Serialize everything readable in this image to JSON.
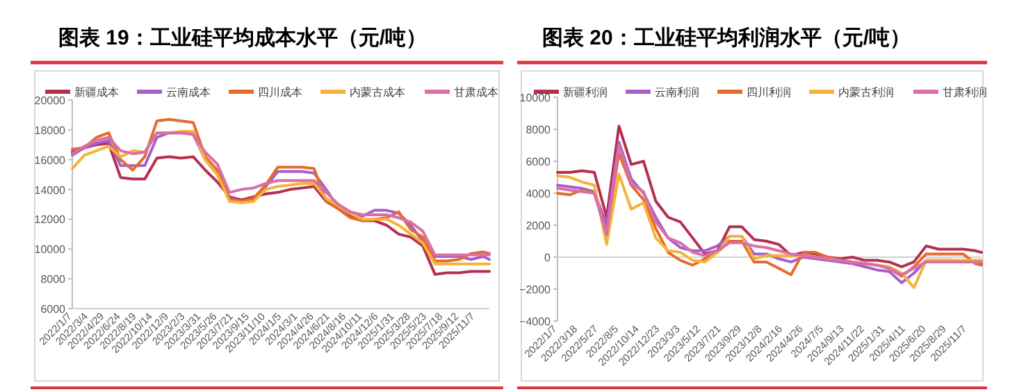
{
  "chart_data": [
    {
      "type": "line",
      "title": "图表 19：工业硅平均成本水平（元/吨）",
      "legend": "top",
      "x": [
        "2022-01-07",
        "2022-02-18",
        "2022-04-01",
        "2022-05-13",
        "2022-06-24",
        "2022-08-05",
        "2022-09-16",
        "2022-10-28",
        "2022-12-09",
        "2023-01-20",
        "2023-03-03",
        "2023-04-14",
        "2023-05-26",
        "2023-07-07",
        "2023-08-18",
        "2023-09-29",
        "2023-11-10",
        "2023-12-22",
        "2024-02-02",
        "2024-03-15",
        "2024-04-26",
        "2024-06-07",
        "2024-07-19",
        "2024-08-30",
        "2024-10-11",
        "2024-11-22",
        "2025-01-03",
        "2025-02-14",
        "2025-03-28",
        "2025-05-09",
        "2025-06-20",
        "2025-08-01",
        "2025-09-12",
        "2025-10-24",
        "2025-12-05",
        "2025-12-26"
      ],
      "xlim": [
        "2022-01-07",
        "2025-12-26"
      ],
      "xticks": [
        {
          "value": "2022-01-07",
          "label": "2022/1/7"
        },
        {
          "value": "2022-03-04",
          "label": "2022/3/4"
        },
        {
          "value": "2022-04-29",
          "label": "2022/4/29"
        },
        {
          "value": "2022-06-24",
          "label": "2022/6/24"
        },
        {
          "value": "2022-08-19",
          "label": "2022/8/19"
        },
        {
          "value": "2022-10-14",
          "label": "2022/10/14"
        },
        {
          "value": "2022-12-09",
          "label": "2022/12/9"
        },
        {
          "value": "2023-02-03",
          "label": "2023/2/3"
        },
        {
          "value": "2023-03-31",
          "label": "2023/3/31"
        },
        {
          "value": "2023-05-26",
          "label": "2023/5/26"
        },
        {
          "value": "2023-07-21",
          "label": "2023/7/21"
        },
        {
          "value": "2023-09-15",
          "label": "2023/9/15"
        },
        {
          "value": "2023-11-10",
          "label": "2023/11/10"
        },
        {
          "value": "2024-01-05",
          "label": "2024/1/5"
        },
        {
          "value": "2024-03-01",
          "label": "2024/3/1"
        },
        {
          "value": "2024-04-26",
          "label": "2024/4/26"
        },
        {
          "value": "2024-06-21",
          "label": "2024/6/21"
        },
        {
          "value": "2024-08-16",
          "label": "2024/8/16"
        },
        {
          "value": "2024-10-11",
          "label": "2024/10/11"
        },
        {
          "value": "2024-12-06",
          "label": "2024/12/6"
        },
        {
          "value": "2025-01-31",
          "label": "2025/1/31"
        },
        {
          "value": "2025-03-28",
          "label": "2025/3/28"
        },
        {
          "value": "2025-05-23",
          "label": "2025/5/23"
        },
        {
          "value": "2025-07-18",
          "label": "2025/7/18"
        },
        {
          "value": "2025-09-12",
          "label": "2025/9/12"
        },
        {
          "value": "2025-11-07",
          "label": "2025/11/7"
        }
      ],
      "ylim": [
        6000,
        20000
      ],
      "yticks": [
        6000,
        8000,
        10000,
        12000,
        14000,
        16000,
        18000,
        20000
      ],
      "series": [
        {
          "name": "新疆成本",
          "color": "#b5304f",
          "values": [
            16500,
            16800,
            17000,
            17100,
            14800,
            14700,
            14700,
            16100,
            16200,
            16100,
            16200,
            15300,
            14500,
            13500,
            13300,
            13500,
            13700,
            13800,
            14000,
            14100,
            14200,
            13200,
            12700,
            12200,
            11900,
            11900,
            11600,
            11000,
            10800,
            10200,
            8300,
            8400,
            8400,
            8500,
            8500,
            8500
          ]
        },
        {
          "name": "云南成本",
          "color": "#a65fc9",
          "values": [
            16300,
            16800,
            17100,
            17300,
            15600,
            15600,
            15600,
            17500,
            17800,
            17800,
            17700,
            16000,
            15000,
            13400,
            13200,
            13300,
            14200,
            15200,
            15200,
            15200,
            15100,
            14000,
            12800,
            12400,
            12200,
            12600,
            12600,
            12400,
            11600,
            10500,
            9500,
            9500,
            9500,
            9300,
            9500,
            9300
          ]
        },
        {
          "name": "四川成本",
          "color": "#e36c2d",
          "values": [
            16700,
            16800,
            17500,
            17800,
            16000,
            15300,
            16200,
            18600,
            18700,
            18600,
            18500,
            16200,
            15300,
            13300,
            13200,
            13400,
            14300,
            15500,
            15500,
            15500,
            15400,
            13200,
            12700,
            12100,
            11900,
            12000,
            12100,
            12500,
            11300,
            10800,
            9200,
            9200,
            9300,
            9700,
            9800,
            9700
          ]
        },
        {
          "name": "内蒙古成本",
          "color": "#f7b239",
          "values": [
            15400,
            16300,
            16600,
            16900,
            16200,
            16600,
            16500,
            17800,
            17800,
            17900,
            17900,
            16000,
            15000,
            13200,
            13100,
            13200,
            14000,
            14200,
            14300,
            14400,
            14400,
            13400,
            12900,
            12400,
            12000,
            12000,
            12000,
            11600,
            11000,
            10400,
            9000,
            9000,
            9000,
            9000,
            9000,
            9000
          ]
        },
        {
          "name": "甘肃成本",
          "color": "#d86fa8",
          "values": [
            16400,
            16900,
            17300,
            17500,
            16600,
            16400,
            16500,
            17800,
            17800,
            17800,
            17700,
            16500,
            15700,
            13800,
            14000,
            14100,
            14400,
            14600,
            14600,
            14600,
            14600,
            13800,
            13000,
            12500,
            12300,
            12300,
            12300,
            12100,
            11800,
            11200,
            9600,
            9600,
            9600,
            9600,
            9600,
            9600
          ]
        }
      ]
    },
    {
      "type": "line",
      "title": "图表 20：工业硅平均利润水平（元/吨）",
      "legend": "top",
      "x": [
        "2022-01-07",
        "2022-02-18",
        "2022-04-01",
        "2022-05-13",
        "2022-06-24",
        "2022-08-05",
        "2022-09-16",
        "2022-10-28",
        "2022-12-09",
        "2023-01-20",
        "2023-03-03",
        "2023-04-14",
        "2023-05-26",
        "2023-07-07",
        "2023-08-18",
        "2023-09-29",
        "2023-11-10",
        "2023-12-22",
        "2024-02-02",
        "2024-03-15",
        "2024-04-26",
        "2024-06-07",
        "2024-07-19",
        "2024-08-30",
        "2024-10-11",
        "2024-11-22",
        "2025-01-03",
        "2025-02-14",
        "2025-03-28",
        "2025-05-09",
        "2025-06-20",
        "2025-08-01",
        "2025-09-12",
        "2025-10-24",
        "2025-12-05",
        "2025-12-26"
      ],
      "xlim": [
        "2022-01-07",
        "2025-12-26"
      ],
      "xticks": [
        {
          "value": "2022-01-07",
          "label": "2022/1/7"
        },
        {
          "value": "2022-03-18",
          "label": "2022/3/18"
        },
        {
          "value": "2022-05-27",
          "label": "2022/5/27"
        },
        {
          "value": "2022-08-05",
          "label": "2022/8/5"
        },
        {
          "value": "2022-10-14",
          "label": "2022/10/14"
        },
        {
          "value": "2022-12-23",
          "label": "2022/12/23"
        },
        {
          "value": "2023-03-03",
          "label": "2023/3/3"
        },
        {
          "value": "2023-05-12",
          "label": "2023/5/12"
        },
        {
          "value": "2023-07-21",
          "label": "2023/7/21"
        },
        {
          "value": "2023-09-29",
          "label": "2023/9/29"
        },
        {
          "value": "2023-12-08",
          "label": "2023/12/8"
        },
        {
          "value": "2024-02-16",
          "label": "2024/2/16"
        },
        {
          "value": "2024-04-26",
          "label": "2024/4/26"
        },
        {
          "value": "2024-07-05",
          "label": "2024/7/5"
        },
        {
          "value": "2024-09-13",
          "label": "2024/9/13"
        },
        {
          "value": "2024-11-22",
          "label": "2024/11/22"
        },
        {
          "value": "2025-01-31",
          "label": "2025/1/31"
        },
        {
          "value": "2025-04-11",
          "label": "2025/4/11"
        },
        {
          "value": "2025-06-20",
          "label": "2025/6/20"
        },
        {
          "value": "2025-08-29",
          "label": "2025/8/29"
        },
        {
          "value": "2025-11-07",
          "label": "2025/11/7"
        }
      ],
      "ylim": [
        -4000,
        10000
      ],
      "yticks": [
        -4000,
        -2000,
        0,
        2000,
        4000,
        6000,
        8000,
        10000
      ],
      "series": [
        {
          "name": "新疆利润",
          "color": "#b5304f",
          "values": [
            5300,
            5300,
            5400,
            5300,
            2500,
            8200,
            5800,
            6000,
            3500,
            2500,
            2200,
            1200,
            200,
            400,
            1900,
            1900,
            1100,
            1000,
            800,
            100,
            300,
            200,
            0,
            -100,
            0,
            -200,
            -200,
            -300,
            -600,
            -300,
            700,
            500,
            500,
            500,
            400,
            300
          ]
        },
        {
          "name": "云南利润",
          "color": "#a65fc9",
          "values": [
            4500,
            4400,
            4300,
            4100,
            2000,
            7200,
            4900,
            4000,
            2500,
            1200,
            600,
            400,
            400,
            700,
            1300,
            1300,
            200,
            200,
            -100,
            -300,
            0,
            -100,
            -200,
            -300,
            -400,
            -600,
            -800,
            -900,
            -1600,
            -1000,
            -200,
            -200,
            -200,
            -300,
            -300,
            -400
          ]
        },
        {
          "name": "四川利润",
          "color": "#e36c2d",
          "values": [
            4000,
            3900,
            4200,
            4000,
            1500,
            6500,
            4500,
            3600,
            1800,
            300,
            -200,
            -500,
            -100,
            300,
            1000,
            1000,
            -300,
            -300,
            -700,
            -1100,
            300,
            300,
            0,
            -200,
            -300,
            -400,
            -500,
            -700,
            -1200,
            -600,
            200,
            200,
            200,
            200,
            -400,
            -500
          ]
        },
        {
          "name": "内蒙古利润",
          "color": "#f7b239",
          "values": [
            5100,
            5000,
            4700,
            4500,
            800,
            5200,
            3000,
            3400,
            1200,
            400,
            300,
            -200,
            -300,
            300,
            1300,
            1300,
            -100,
            100,
            100,
            100,
            100,
            0,
            -100,
            -200,
            -300,
            -400,
            -500,
            -600,
            -1000,
            -1900,
            -200,
            -200,
            -200,
            -200,
            -200,
            -200
          ]
        },
        {
          "name": "甘肃利润",
          "color": "#d86fa8",
          "values": [
            4300,
            4200,
            4100,
            4000,
            1400,
            7000,
            4600,
            4100,
            2200,
            1200,
            900,
            300,
            100,
            400,
            900,
            900,
            700,
            600,
            400,
            200,
            100,
            0,
            -100,
            -200,
            -300,
            -400,
            -500,
            -700,
            -1100,
            -700,
            -300,
            -300,
            -300,
            -300,
            -300,
            -300
          ]
        }
      ]
    }
  ]
}
